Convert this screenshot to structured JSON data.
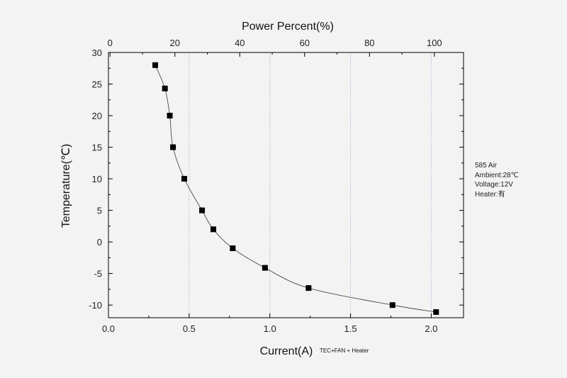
{
  "chart_data": {
    "type": "line",
    "x_axis": {
      "label": "Current(A)",
      "sublabel": "TEC+FAN + Heater",
      "range": [
        0.0,
        2.2
      ],
      "ticks": [
        "0.0",
        "0.5",
        "1.0",
        "1.5",
        "2.0"
      ]
    },
    "top_axis": {
      "label": "Power Percent(%)",
      "range": [
        -0.5,
        109.0
      ],
      "ticks": [
        "0",
        "20",
        "40",
        "60",
        "80",
        "100"
      ]
    },
    "y_axis": {
      "label": "Temperature(℃)",
      "range": [
        -12,
        30
      ],
      "ticks": [
        "30",
        "25",
        "20",
        "15",
        "10",
        "5",
        "0",
        "-5",
        "-10"
      ]
    },
    "grid": {
      "vertical_at_x": [
        0.5,
        1.0,
        1.5,
        2.0
      ],
      "style": "dotted"
    },
    "series": [
      {
        "marker": "square",
        "x": [
          0.29,
          0.35,
          0.38,
          0.4,
          0.47,
          0.58,
          0.65,
          0.77,
          0.97,
          1.24,
          1.76,
          2.03
        ],
        "y": [
          28.0,
          24.3,
          20.0,
          15.0,
          10.0,
          5.0,
          2.0,
          -1.0,
          -4.1,
          -7.3,
          -10.0,
          -11.1
        ]
      }
    ],
    "annotations": [
      "585 Air",
      "Ambient:28℃",
      "Voltage:12V",
      "Heater:有"
    ]
  }
}
